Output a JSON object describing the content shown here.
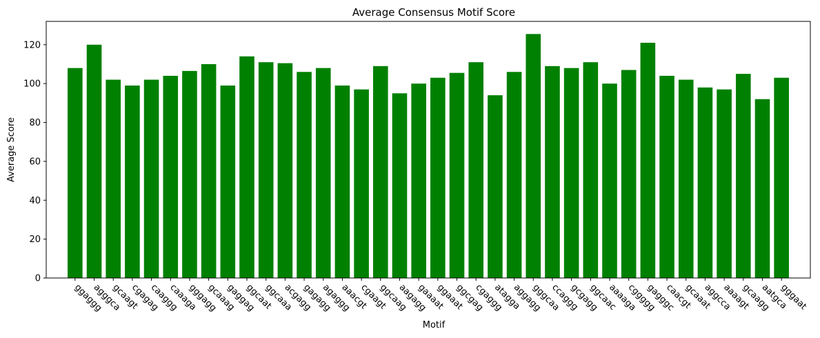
{
  "chart_data": {
    "type": "bar",
    "title": "Average Consensus Motif Score",
    "xlabel": "Motif",
    "ylabel": "Average Score",
    "ylim": [
      0,
      132
    ],
    "yticks": [
      0,
      20,
      40,
      60,
      80,
      100,
      120
    ],
    "bar_color": "#008000",
    "categories": [
      "ggaggg",
      "agggca",
      "gcaagt",
      "cgagag",
      "caaggg",
      "caaaga",
      "gggagg",
      "gcaaag",
      "gaggag",
      "ggcaat",
      "ggcaaa",
      "acgagg",
      "gagagg",
      "agaggg",
      "aaacgt",
      "cgaagt",
      "ggcaag",
      "aagagg",
      "gaaaat",
      "ggaaat",
      "ggcgag",
      "cgaggg",
      "atagga",
      "aggagg",
      "gggcaa",
      "ccaggg",
      "gcgagg",
      "ggcaac",
      "aaaaga",
      "cggggg",
      "gagggc",
      "caacgt",
      "gcaaat",
      "aggcca",
      "aaaagt",
      "gcaagg",
      "aatgca",
      "gggaat"
    ],
    "values": [
      108,
      120,
      102,
      99,
      102,
      104,
      106.5,
      110,
      99,
      114,
      111,
      110.5,
      106,
      108,
      99,
      97,
      109,
      95,
      100,
      103,
      105.5,
      111,
      94,
      106,
      125.5,
      109,
      108,
      111,
      100,
      107,
      121,
      104,
      102,
      98,
      97,
      105,
      92,
      103
    ]
  }
}
